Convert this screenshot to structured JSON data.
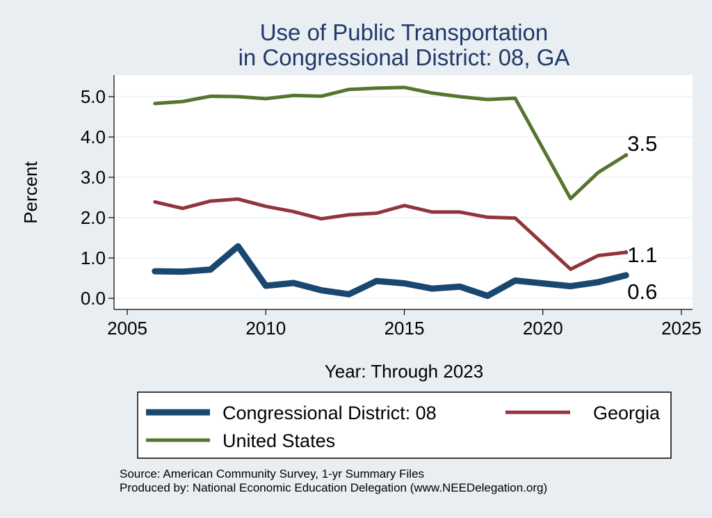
{
  "chart_data": {
    "type": "line",
    "title": [
      "Use of Public Transportation",
      "in Congressional District: 08, GA"
    ],
    "xlabel": "Year: Through 2023",
    "ylabel": "Percent",
    "xlim": [
      2005,
      2025
    ],
    "ylim": [
      0,
      5.5
    ],
    "xticks": [
      2005,
      2010,
      2015,
      2020,
      2025
    ],
    "yticks": [
      0,
      1,
      2,
      3,
      4,
      5
    ],
    "ytick_labels": [
      "0.0",
      "1.0",
      "2.0",
      "3.0",
      "4.0",
      "5.0"
    ],
    "grid": "horizontal",
    "x": [
      2006,
      2007,
      2008,
      2009,
      2010,
      2011,
      2012,
      2013,
      2014,
      2015,
      2016,
      2017,
      2018,
      2019,
      2021,
      2022,
      2023
    ],
    "series": [
      {
        "name": "Congressional District: 08",
        "color": "#1a476f",
        "width": "thick",
        "end_label": "0.6",
        "values": [
          0.67,
          0.66,
          0.71,
          1.29,
          0.31,
          0.38,
          0.2,
          0.1,
          0.43,
          0.37,
          0.24,
          0.29,
          0.06,
          0.44,
          0.3,
          0.4,
          0.57
        ]
      },
      {
        "name": "Georgia",
        "color": "#90353b",
        "width": "medium",
        "end_label": "1.1",
        "values": [
          2.39,
          2.23,
          2.41,
          2.46,
          2.28,
          2.15,
          1.97,
          2.07,
          2.11,
          2.3,
          2.14,
          2.14,
          2.01,
          1.99,
          0.72,
          1.06,
          1.14
        ]
      },
      {
        "name": "United States",
        "color": "#55752f",
        "width": "medium",
        "end_label": "3.5",
        "values": [
          4.83,
          4.88,
          5.01,
          5.0,
          4.95,
          5.03,
          5.01,
          5.18,
          5.21,
          5.23,
          5.09,
          5.0,
          4.93,
          4.96,
          2.47,
          3.12,
          3.55
        ]
      }
    ],
    "legend": {
      "position": "bottom",
      "items": [
        "Congressional District: 08",
        "Georgia",
        "United States"
      ]
    },
    "source_lines": [
      "Source: American Community Survey, 1-yr Summary Files",
      "Produced by: National Economic Education Delegation (www.NEEDelegation.org)"
    ]
  }
}
